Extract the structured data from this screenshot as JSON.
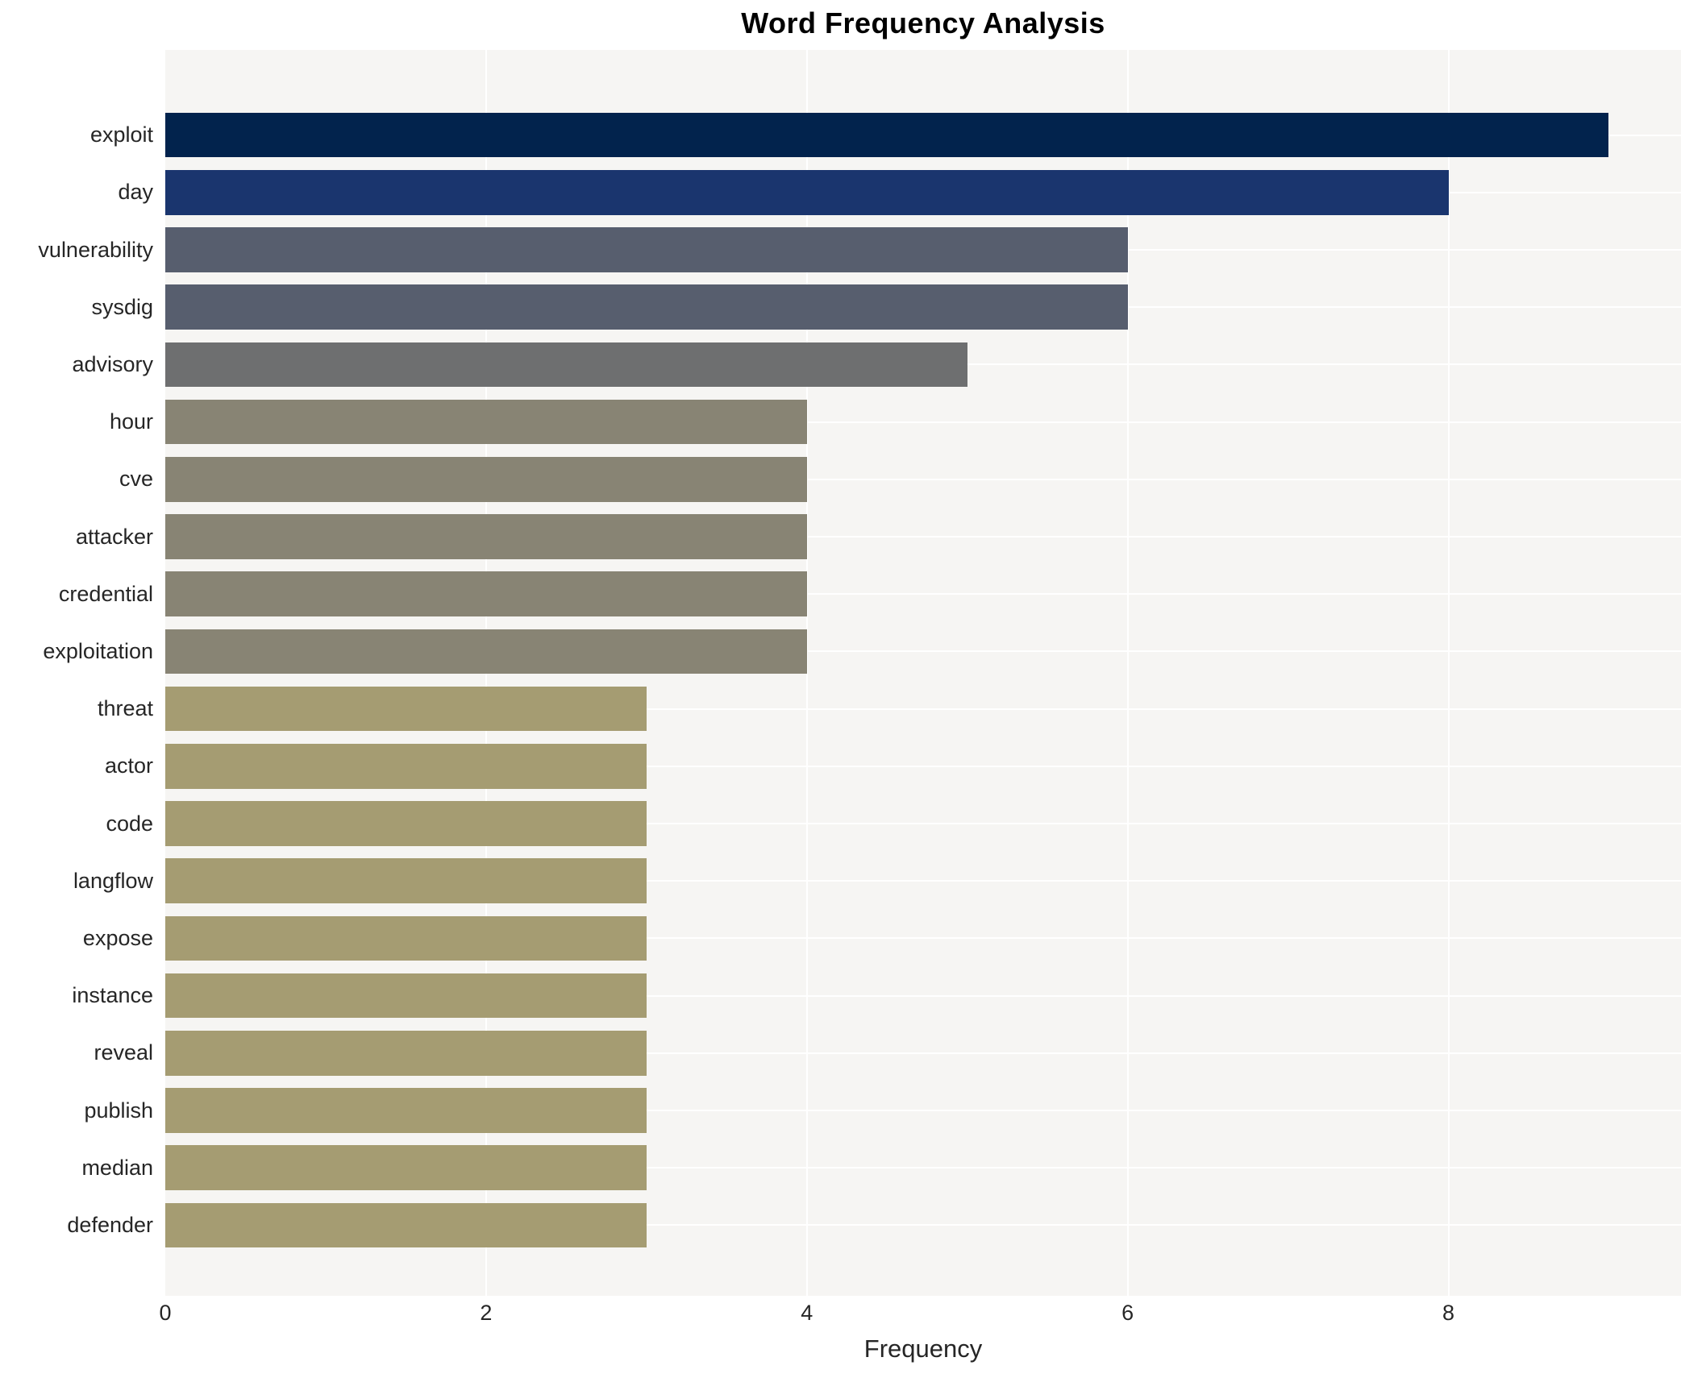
{
  "title": "Word Frequency Analysis",
  "x_axis": {
    "label": "Frequency",
    "ticks": [
      0,
      2,
      4,
      6,
      8
    ],
    "gridlines": [
      2,
      4,
      6,
      8
    ]
  },
  "chart_data": {
    "type": "bar",
    "orientation": "horizontal",
    "title": "Word Frequency Analysis",
    "xlabel": "Frequency",
    "ylabel": "",
    "xlim": [
      0,
      9.45
    ],
    "grid": true,
    "legend": false,
    "plot_background": "#f6f5f3",
    "gridline_color": "#ffffff",
    "colormap": "cividis",
    "categories": [
      "exploit",
      "day",
      "vulnerability",
      "sysdig",
      "advisory",
      "hour",
      "cve",
      "attacker",
      "credential",
      "exploitation",
      "threat",
      "actor",
      "code",
      "langflow",
      "expose",
      "instance",
      "reveal",
      "publish",
      "median",
      "defender"
    ],
    "values": [
      9,
      8,
      6,
      6,
      5,
      4,
      4,
      4,
      4,
      4,
      3,
      3,
      3,
      3,
      3,
      3,
      3,
      3,
      3,
      3
    ],
    "bar_colors": [
      "#02234d",
      "#1a356e",
      "#575e6e",
      "#575e6e",
      "#6e6f70",
      "#888474",
      "#888474",
      "#888474",
      "#888474",
      "#888474",
      "#a59c72",
      "#a59c72",
      "#a59c72",
      "#a59c72",
      "#a59c72",
      "#a59c72",
      "#a59c72",
      "#a59c72",
      "#a59c72",
      "#a59c72"
    ]
  }
}
